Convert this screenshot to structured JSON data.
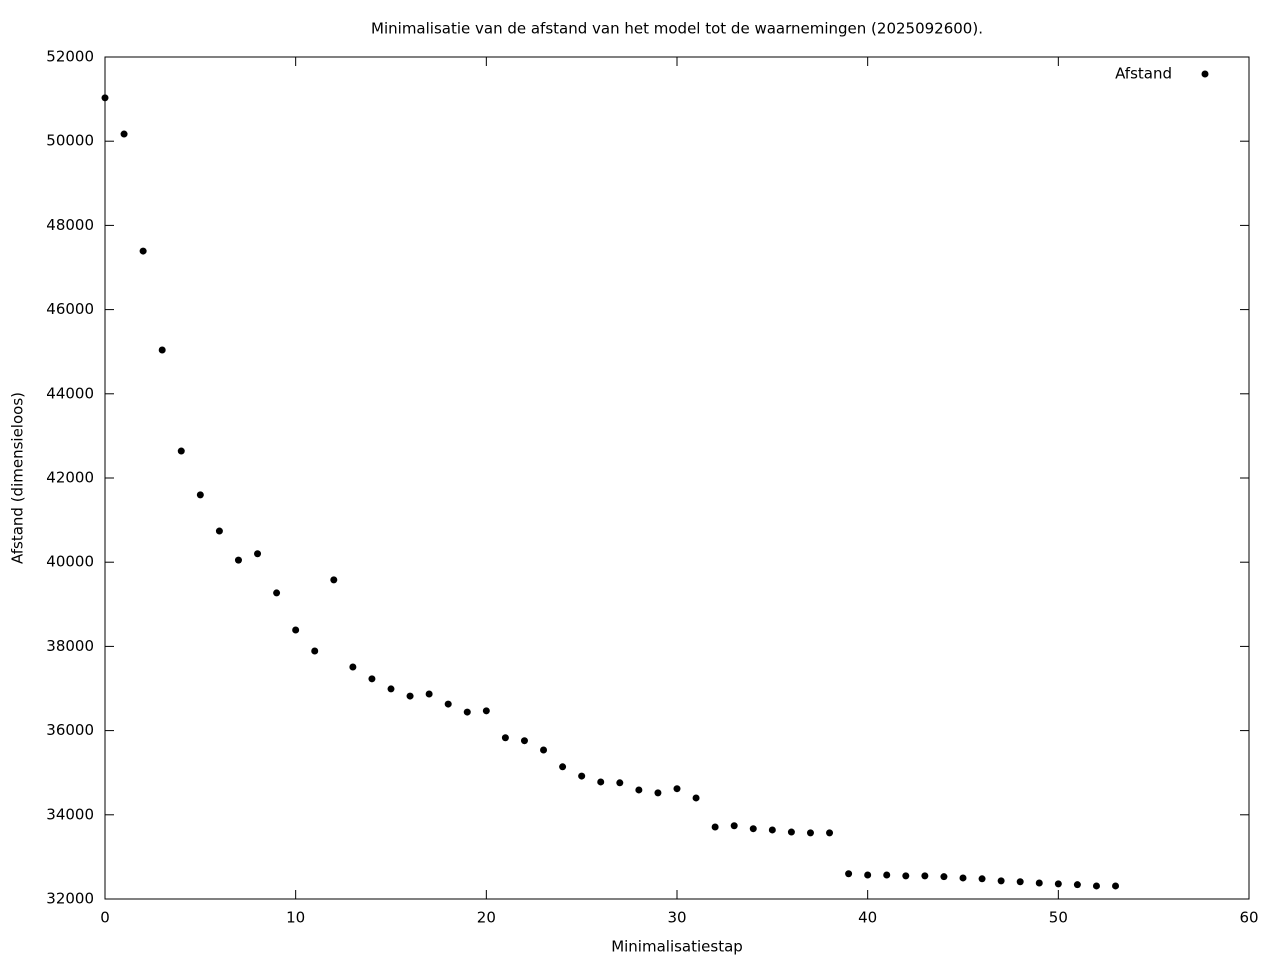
{
  "chart_data": {
    "type": "scatter",
    "title": "Minimalisatie van de afstand van het model tot de waarnemingen (2025092600).",
    "xlabel": "Minimalisatiestap",
    "ylabel": "Afstand (dimensieloos)",
    "x": [
      0,
      1,
      2,
      3,
      4,
      5,
      6,
      7,
      8,
      9,
      10,
      11,
      12,
      13,
      14,
      15,
      16,
      17,
      18,
      19,
      20,
      21,
      22,
      23,
      24,
      25,
      26,
      27,
      28,
      29,
      30,
      31,
      32,
      33,
      34,
      35,
      36,
      37,
      38,
      39,
      40,
      41,
      42,
      43,
      44,
      45,
      46,
      47,
      48,
      49,
      50,
      51,
      52,
      53
    ],
    "series": [
      {
        "name": "Afstand",
        "color": "#000000",
        "values": [
          51030,
          50170,
          47390,
          45040,
          42640,
          41600,
          40740,
          40050,
          40200,
          39270,
          38390,
          37890,
          39580,
          37510,
          37230,
          36990,
          36820,
          36870,
          36630,
          36440,
          36470,
          35830,
          35760,
          35540,
          35140,
          34920,
          34780,
          34760,
          34590,
          34520,
          34620,
          34400,
          33710,
          33740,
          33670,
          33640,
          33590,
          33570,
          33570,
          32600,
          32570,
          32570,
          32550,
          32550,
          32530,
          32500,
          32480,
          32430,
          32410,
          32380,
          32360,
          32340,
          32310,
          32310
        ]
      }
    ],
    "xlim": [
      0,
      60
    ],
    "xticks": [
      0,
      10,
      20,
      30,
      40,
      50,
      60
    ],
    "ylim": [
      32000,
      52000
    ],
    "yticks": [
      32000,
      34000,
      36000,
      38000,
      40000,
      42000,
      44000,
      46000,
      48000,
      50000,
      52000
    ],
    "legend": "top-right"
  }
}
